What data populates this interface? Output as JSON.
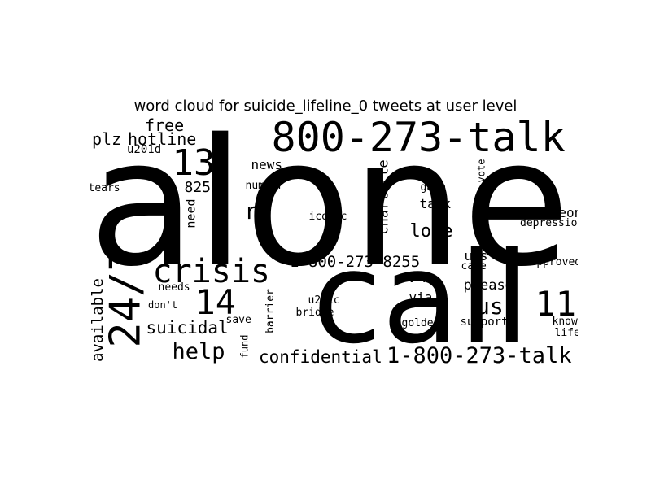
{
  "chart_data": {
    "type": "word_cloud",
    "title": "word cloud for suicide_lifeline_0 tweets at user level",
    "colors": {
      "words": "#000000",
      "background": "#ffffff"
    },
    "words": [
      {
        "text": "alone",
        "weight": 1.0,
        "vertical": false
      },
      {
        "text": "call",
        "weight": 0.8,
        "vertical": false
      },
      {
        "text": "800-273-talk",
        "weight": 0.3,
        "vertical": false
      },
      {
        "text": "24/7",
        "weight": 0.28,
        "vertical": true
      },
      {
        "text": "crisis",
        "weight": 0.22,
        "vertical": false
      },
      {
        "text": "13",
        "weight": 0.2,
        "vertical": false
      },
      {
        "text": "14",
        "weight": 0.2,
        "vertical": false
      },
      {
        "text": "11",
        "weight": 0.2,
        "vertical": false
      },
      {
        "text": "1-800-273-talk",
        "weight": 0.14,
        "vertical": false
      },
      {
        "text": "us",
        "weight": 0.14,
        "vertical": false
      },
      {
        "text": "rt",
        "weight": 0.14,
        "vertical": false
      },
      {
        "text": "help",
        "weight": 0.14,
        "vertical": false
      },
      {
        "text": "love",
        "weight": 0.12,
        "vertical": false
      },
      {
        "text": "suicidal",
        "weight": 0.11,
        "vertical": false
      },
      {
        "text": "confidential",
        "weight": 0.11,
        "vertical": false
      },
      {
        "text": "1-800-273-8255",
        "weight": 0.11,
        "vertical": false
      },
      {
        "text": "plz",
        "weight": 0.11,
        "vertical": false
      },
      {
        "text": "hotline",
        "weight": 0.1,
        "vertical": false
      },
      {
        "text": "free",
        "weight": 0.1,
        "vertical": false
      },
      {
        "text": "available",
        "weight": 0.1,
        "vertical": true
      },
      {
        "text": "8255",
        "weight": 0.09,
        "vertical": false
      },
      {
        "text": "charlotte",
        "weight": 0.09,
        "vertical": true
      },
      {
        "text": "please",
        "weight": 0.09,
        "vertical": false
      },
      {
        "text": "talk",
        "weight": 0.08,
        "vertical": false
      },
      {
        "text": "someone",
        "weight": 0.08,
        "vertical": false
      },
      {
        "text": "news",
        "weight": 0.08,
        "vertical": false
      },
      {
        "text": "need",
        "weight": 0.08,
        "vertical": true
      },
      {
        "text": "via",
        "weight": 0.08,
        "vertical": false
      },
      {
        "text": "u.s",
        "weight": 0.08,
        "vertical": false
      },
      {
        "text": "support",
        "weight": 0.07,
        "vertical": false
      },
      {
        "text": "u201d",
        "weight": 0.07,
        "vertical": false
      },
      {
        "text": "number",
        "weight": 0.07,
        "vertical": false
      },
      {
        "text": "iconic",
        "weight": 0.07,
        "vertical": false
      },
      {
        "text": "depression",
        "weight": 0.07,
        "vertical": false
      },
      {
        "text": "care",
        "weight": 0.07,
        "vertical": false
      },
      {
        "text": "approved",
        "weight": 0.06,
        "vertical": false
      },
      {
        "text": "needs",
        "weight": 0.06,
        "vertical": false
      },
      {
        "text": "tears",
        "weight": 0.06,
        "vertical": false
      },
      {
        "text": "gate",
        "weight": 0.06,
        "vertical": false
      },
      {
        "text": "golden",
        "weight": 0.06,
        "vertical": false
      },
      {
        "text": "bridge",
        "weight": 0.06,
        "vertical": false
      },
      {
        "text": "u201c",
        "weight": 0.06,
        "vertical": false
      },
      {
        "text": "barrier",
        "weight": 0.06,
        "vertical": true
      },
      {
        "text": "know",
        "weight": 0.06,
        "vertical": false
      },
      {
        "text": "life",
        "weight": 0.06,
        "vertical": false
      },
      {
        "text": "joy",
        "weight": 0.06,
        "vertical": false
      },
      {
        "text": "save",
        "weight": 0.06,
        "vertical": false
      },
      {
        "text": "don't",
        "weight": 0.06,
        "vertical": false
      },
      {
        "text": "fund",
        "weight": 0.06,
        "vertical": true
      },
      {
        "text": "vote",
        "weight": 0.05,
        "vertical": true
      }
    ]
  }
}
